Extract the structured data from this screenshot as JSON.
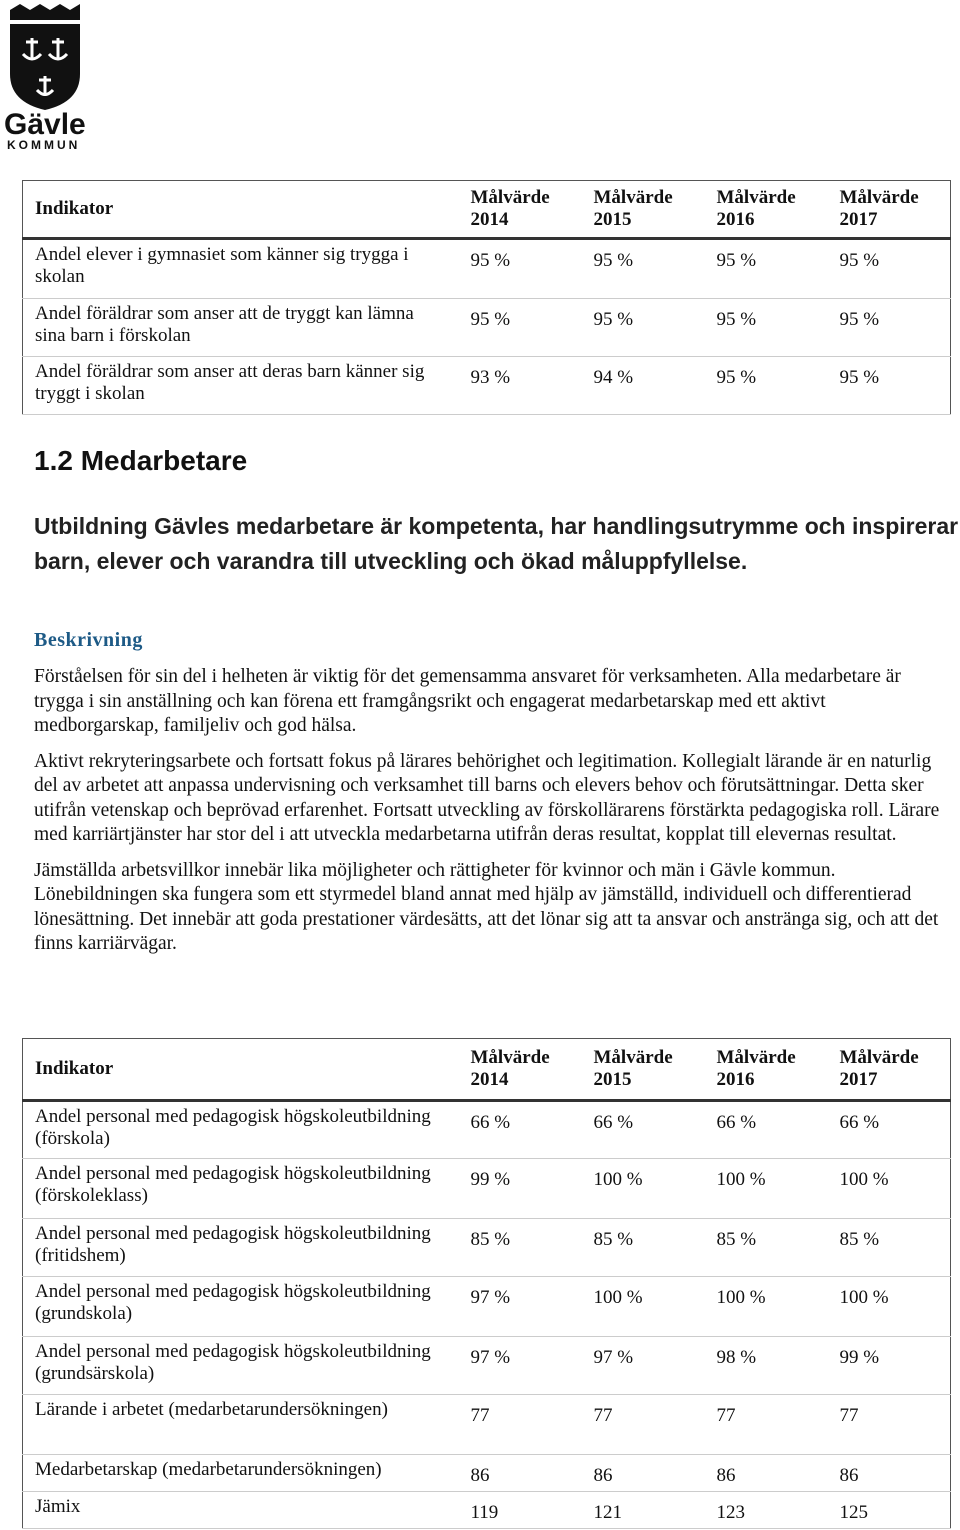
{
  "header": {
    "logo_name": "Gävle",
    "logo_sub": "KOMMUN"
  },
  "table1": {
    "columns": [
      "Indikator",
      "Målvärde 2014",
      "Målvärde 2015",
      "Målvärde 2016",
      "Målvärde 2017"
    ],
    "rows": [
      [
        "Andel elever i gymnasiet som känner sig trygga i skolan",
        "95 %",
        "95 %",
        "95 %",
        "95 %"
      ],
      [
        "Andel föräldrar som anser att de tryggt kan lämna sina barn i förskolan",
        "95 %",
        "95 %",
        "95 %",
        "95 %"
      ],
      [
        "Andel föräldrar som anser att deras barn känner sig tryggt i skolan",
        "93 %",
        "94 %",
        "95 %",
        "95 %"
      ]
    ]
  },
  "section": {
    "heading": "1.2 Medarbetare",
    "goal": "Utbildning Gävles medarbetare är kompetenta, har handlingsutrymme och inspirerar barn, elever och varandra till utveckling och ökad måluppfyllelse.",
    "description_label": "Beskrivning",
    "paragraphs": [
      "Förståelsen för sin del i helheten är viktig för det gemensamma ansvaret för verksamheten. Alla medarbetare är trygga i sin anställning och kan förena ett framgångsrikt och engagerat medarbetarskap med ett aktivt medborgarskap, familjeliv och god hälsa.",
      "Aktivt rekryteringsarbete och fortsatt fokus på lärares behörighet och legitimation. Kollegialt lärande är en naturlig del av arbetet att anpassa undervisning och verksamhet till barns och elevers behov och förutsättningar. Detta sker utifrån vetenskap och beprövad erfarenhet. Fortsatt utveckling av förskollärarens förstärkta pedagogiska roll. Lärare med karriärtjänster har stor del i att utveckla medarbetarna utifrån deras resultat, kopplat till elevernas resultat.",
      "Jämställda arbetsvillkor innebär lika möjligheter och rättigheter för kvinnor och män i Gävle kommun. Lönebildningen ska fungera som ett styrmedel bland annat med hjälp av jämställd, individuell och differentierad lönesättning. Det innebär att goda prestationer värdesätts, att det lönar sig att ta ansvar och anstränga sig, och att det finns karriärvägar."
    ]
  },
  "table2": {
    "columns": [
      "Indikator",
      "Målvärde 2014",
      "Målvärde 2015",
      "Målvärde 2016",
      "Målvärde 2017"
    ],
    "rows": [
      [
        "Andel personal med pedagogisk högskoleutbildning (förskola)",
        "66 %",
        "66 %",
        "66 %",
        "66 %"
      ],
      [
        "Andel personal med pedagogisk högskoleutbildning (förskoleklass)",
        "99 %",
        "100 %",
        "100 %",
        "100 %"
      ],
      [
        "Andel personal med pedagogisk högskoleutbildning (fritidshem)",
        "85 %",
        "85 %",
        "85 %",
        "85 %"
      ],
      [
        "Andel personal med pedagogisk högskoleutbildning (grundskola)",
        "97 %",
        "100 %",
        "100 %",
        "100 %"
      ],
      [
        "Andel personal med pedagogisk högskoleutbildning (grundsärskola)",
        "97 %",
        "97 %",
        "98 %",
        "99 %"
      ],
      [
        "Lärande i arbetet (medarbetarundersökningen)",
        "77",
        "77",
        "77",
        "77"
      ],
      [
        "Medarbetarskap (medarbetarundersökningen)",
        "86",
        "86",
        "86",
        "86"
      ],
      [
        "Jämix",
        "119",
        "121",
        "123",
        "125"
      ]
    ]
  }
}
